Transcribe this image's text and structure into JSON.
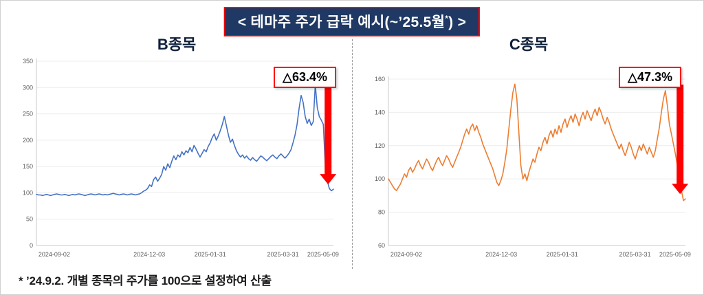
{
  "banner": {
    "text_main": "< 테마주 주가 급락 예시(~’25.5월",
    "text_sup": "*",
    "text_close": ") >"
  },
  "footnote": "*  ’24.9.2. 개별 종목의 주가를 100으로 설정하여 산출",
  "chart_data": [
    {
      "type": "line",
      "title": "B종목",
      "annotation": "△63.4%",
      "color": "#4472c4",
      "arrow_color": "#ff0000",
      "ylim": [
        0,
        350
      ],
      "yticks": [
        0,
        50,
        100,
        150,
        200,
        250,
        300,
        350
      ],
      "xticks": [
        "2024-09-02",
        "2024-12-03",
        "2025-01-31",
        "2025-03-31",
        "2025-05-09"
      ],
      "xtick_pos": [
        0.06,
        0.38,
        0.585,
        0.83,
        0.965
      ],
      "grid": true,
      "legend": "none",
      "top_pad": 0,
      "values": [
        97,
        96,
        96,
        95,
        96,
        97,
        96,
        95,
        96,
        97,
        98,
        97,
        96,
        96,
        97,
        96,
        95,
        96,
        97,
        96,
        97,
        98,
        97,
        96,
        95,
        96,
        97,
        98,
        97,
        96,
        97,
        98,
        97,
        96,
        97,
        96,
        97,
        98,
        99,
        98,
        97,
        96,
        97,
        98,
        97,
        96,
        97,
        98,
        97,
        96,
        97,
        98,
        100,
        103,
        105,
        108,
        115,
        112,
        125,
        130,
        122,
        128,
        135,
        150,
        143,
        155,
        148,
        160,
        170,
        163,
        172,
        168,
        178,
        172,
        180,
        176,
        186,
        178,
        190,
        183,
        175,
        168,
        175,
        182,
        178,
        188,
        195,
        205,
        212,
        200,
        208,
        218,
        230,
        245,
        228,
        210,
        196,
        202,
        190,
        180,
        173,
        168,
        172,
        166,
        170,
        165,
        162,
        167,
        163,
        160,
        165,
        170,
        168,
        164,
        161,
        165,
        169,
        172,
        168,
        165,
        170,
        174,
        170,
        166,
        170,
        175,
        182,
        195,
        210,
        230,
        260,
        285,
        272,
        245,
        232,
        240,
        228,
        235,
        305,
        262,
        245,
        238,
        230,
        150,
        122,
        108,
        104,
        107
      ]
    },
    {
      "type": "line",
      "title": "C종목",
      "annotation": "△47.3%",
      "color": "#ed7d31",
      "arrow_color": "#ff0000",
      "ylim": [
        60,
        160
      ],
      "yticks": [
        60,
        80,
        100,
        120,
        140,
        160
      ],
      "xticks": [
        "2024-09-02",
        "2024-12-03",
        "2025-01-31",
        "2025-03-31",
        "2025-05-09"
      ],
      "xtick_pos": [
        0.06,
        0.38,
        0.585,
        0.83,
        0.965
      ],
      "grid": true,
      "legend": "none",
      "top_pad": 26,
      "values": [
        100,
        98,
        96,
        94,
        93,
        95,
        97,
        100,
        103,
        101,
        105,
        107,
        104,
        106,
        109,
        111,
        108,
        106,
        109,
        112,
        110,
        107,
        105,
        108,
        111,
        113,
        110,
        108,
        111,
        114,
        112,
        109,
        107,
        110,
        113,
        116,
        119,
        123,
        127,
        130,
        127,
        131,
        133,
        129,
        132,
        128,
        125,
        121,
        118,
        115,
        112,
        109,
        106,
        102,
        98,
        96,
        99,
        103,
        110,
        118,
        130,
        142,
        152,
        157,
        148,
        128,
        108,
        100,
        103,
        99,
        104,
        108,
        112,
        110,
        115,
        119,
        117,
        122,
        125,
        121,
        126,
        129,
        125,
        130,
        127,
        132,
        128,
        133,
        136,
        131,
        135,
        138,
        134,
        139,
        136,
        132,
        137,
        140,
        136,
        141,
        138,
        135,
        139,
        142,
        138,
        143,
        140,
        136,
        133,
        137,
        134,
        130,
        127,
        124,
        121,
        118,
        121,
        117,
        114,
        118,
        122,
        119,
        115,
        112,
        116,
        120,
        117,
        121,
        118,
        115,
        119,
        116,
        113,
        117,
        124,
        131,
        140,
        148,
        153,
        144,
        133,
        127,
        121,
        115,
        108,
        100,
        93,
        87,
        88
      ]
    }
  ]
}
